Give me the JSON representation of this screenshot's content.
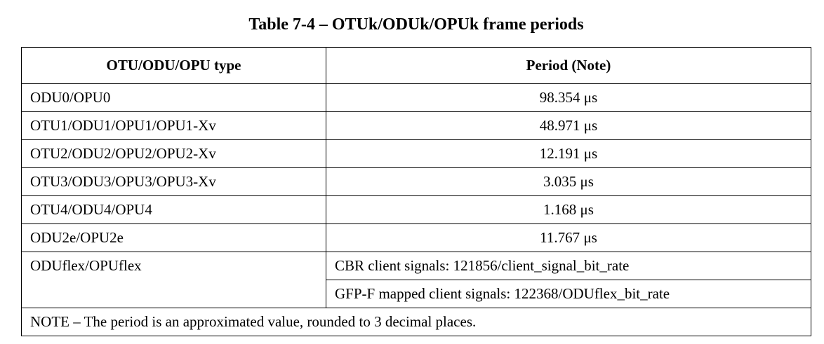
{
  "caption": "Table 7-4 – OTUk/ODUk/OPUk frame periods",
  "headers": [
    "OTU/ODU/OPU type",
    "Period (Note)"
  ],
  "rows": [
    {
      "type": "ODU0/OPU0",
      "period": "98.354 μs"
    },
    {
      "type": "OTU1/ODU1/OPU1/OPU1-Xv",
      "period": "48.971 μs"
    },
    {
      "type": "OTU2/ODU2/OPU2/OPU2-Xv",
      "period": "12.191 μs"
    },
    {
      "type": "OTU3/ODU3/OPU3/OPU3-Xv",
      "period": "3.035 μs"
    },
    {
      "type": "OTU4/ODU4/OPU4",
      "period": "1.168 μs"
    },
    {
      "type": "ODU2e/OPU2e",
      "period": "11.767 μs"
    }
  ],
  "flex_row": {
    "type": "ODUflex/OPUflex",
    "cbr": "CBR client signals: 121856/client_signal_bit_rate",
    "gfp": "GFP-F mapped client signals: 122368/ODUflex_bit_rate"
  },
  "note": "NOTE – The period is an approximated value, rounded to 3 decimal places."
}
